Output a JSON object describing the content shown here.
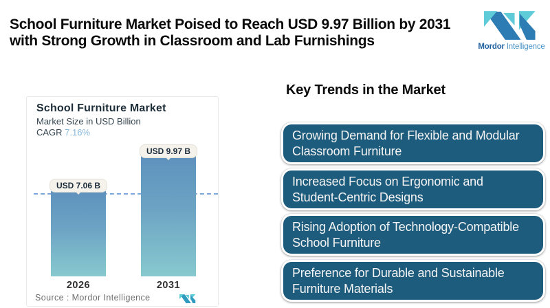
{
  "header": {
    "title_line1": "School Furniture Market Poised to Reach USD 9.97 Billion by 2031",
    "title_line2": "with Strong Growth in Classroom and Lab Furnishings"
  },
  "brand": {
    "logo_icon": "mordor-intelligence-m-mark",
    "name_bold": "Mordor",
    "name_regular": " Intelligence",
    "colors": {
      "dark_blue": "#2e7cb4",
      "teal": "#5fcbd8",
      "text_blue": "#20619f"
    }
  },
  "chart_card": {
    "title": "School Furniture Market",
    "subtitle": "Market Size in USD Billion",
    "cagr_label": "CAGR ",
    "cagr_value": "7.16%",
    "source_label": "Source :  Mordor Intelligence"
  },
  "chart_data": {
    "type": "bar",
    "title": "School Furniture Market",
    "subtitle": "Market Size in USD Billion",
    "unit": "USD Billion",
    "cagr": "7.16%",
    "categories": [
      "2026",
      "2031"
    ],
    "values": [
      7.06,
      9.97
    ],
    "value_labels": [
      "USD 7.06 B",
      "USD 9.97 B"
    ],
    "dashed_reference_value": 7.06,
    "grid": false,
    "bar_gradient": [
      "#5e92bd",
      "#87c9cf"
    ],
    "dashed_line_color": "#7aa6d8",
    "label_chip_bg": "#f4f2eb"
  },
  "trends": {
    "heading": "Key Trends in the Market",
    "box_color": "#1e5c7d",
    "items": [
      [
        "Growing Demand for Flexible and Modular",
        "Classroom Furniture"
      ],
      [
        "Increased Focus on Ergonomic and",
        "Student-Centric Designs"
      ],
      [
        "Rising Adoption of Technology-Compatible",
        "School Furniture"
      ],
      [
        "Preference for Durable and Sustainable",
        "Furniture Materials"
      ]
    ]
  }
}
